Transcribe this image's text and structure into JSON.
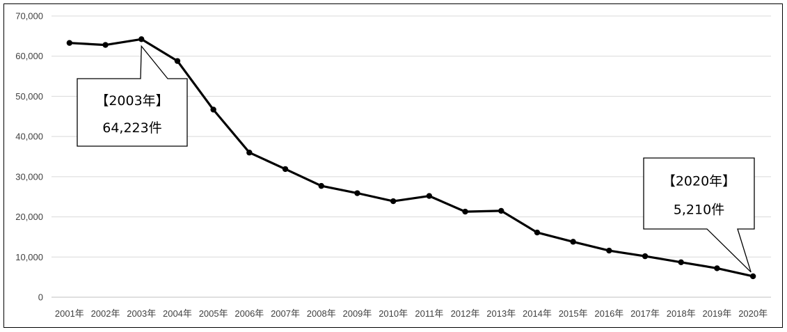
{
  "chart_data": {
    "type": "line",
    "title": "",
    "xlabel": "",
    "ylabel": "",
    "categories": [
      "2001年",
      "2002年",
      "2003年",
      "2004年",
      "2005年",
      "2006年",
      "2007年",
      "2008年",
      "2009年",
      "2010年",
      "2011年",
      "2012年",
      "2013年",
      "2014年",
      "2015年",
      "2016年",
      "2017年",
      "2018年",
      "2019年",
      "2020年"
    ],
    "series": [
      {
        "values": [
          63300,
          62800,
          64223,
          58800,
          46700,
          36000,
          31900,
          27700,
          25900,
          23900,
          25200,
          21300,
          21500,
          16100,
          13800,
          11600,
          10200,
          8700,
          7200,
          5210
        ]
      }
    ],
    "ylim": [
      0,
      70000
    ],
    "yticks": [
      "0",
      "10,000",
      "20,000",
      "30,000",
      "40,000",
      "50,000",
      "60,000",
      "70,000"
    ],
    "grid": true,
    "legend": "none",
    "line_color": "#000000",
    "annotations": [
      {
        "category": "2003年",
        "line1": "【2003年】",
        "line2": "64,223件"
      },
      {
        "category": "2020年",
        "line1": "【2020年】",
        "line2": "5,210件"
      }
    ]
  }
}
